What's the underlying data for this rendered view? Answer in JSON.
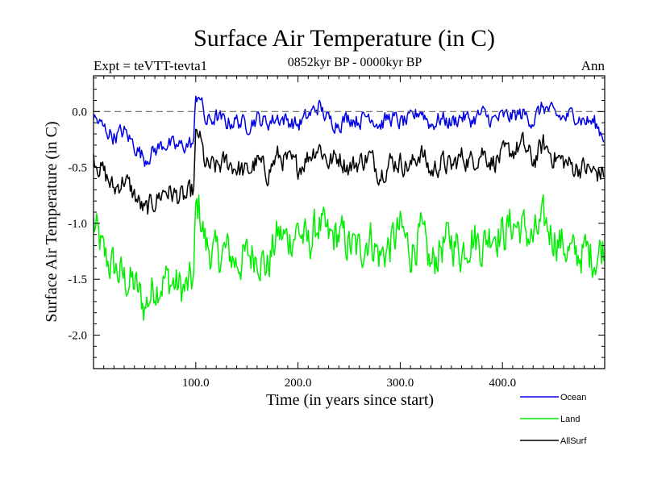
{
  "chart_data": {
    "type": "line",
    "title": "Surface Air Temperature (in C)",
    "subtitle_left": "Expt = teVTT-tevta1",
    "subtitle_center": "0852kyr BP - 0000kyr BP",
    "subtitle_right": "Ann",
    "xlabel": "Time (in years since start)",
    "ylabel": "Surface Air Temperature (in C)",
    "xlim": [
      0,
      500
    ],
    "ylim": [
      -2.3,
      0.32
    ],
    "x_ticks": [
      100,
      200,
      300,
      400
    ],
    "x_tick_labels": [
      "100.0",
      "200.0",
      "300.0",
      "400.0"
    ],
    "y_ticks": [
      0,
      -0.5,
      -1.0,
      -1.5,
      -2.0
    ],
    "y_tick_labels": [
      "0.0",
      "-0.5",
      "-1.0",
      "-1.5",
      "-2.0"
    ],
    "reference_line": 0,
    "legend_position": "bottom-right",
    "series": [
      {
        "name": "Ocean",
        "color": "#0000e6",
        "x": [
          0,
          10,
          20,
          30,
          40,
          50,
          60,
          70,
          80,
          90,
          98,
          100,
          103,
          110,
          120,
          130,
          140,
          150,
          160,
          170,
          180,
          190,
          200,
          210,
          220,
          230,
          240,
          250,
          260,
          270,
          280,
          290,
          300,
          310,
          320,
          330,
          340,
          350,
          360,
          370,
          380,
          390,
          400,
          410,
          420,
          430,
          440,
          450,
          460,
          470,
          480,
          490,
          499
        ],
        "values": [
          -0.05,
          -0.15,
          -0.22,
          -0.18,
          -0.3,
          -0.42,
          -0.35,
          -0.28,
          -0.32,
          -0.3,
          -0.28,
          0.1,
          0.18,
          -0.1,
          -0.05,
          -0.1,
          -0.08,
          -0.12,
          -0.06,
          -0.1,
          -0.05,
          -0.08,
          -0.12,
          -0.04,
          0.05,
          -0.08,
          -0.1,
          -0.05,
          -0.08,
          -0.02,
          -0.12,
          -0.05,
          -0.1,
          -0.08,
          0.02,
          -0.12,
          -0.06,
          -0.1,
          -0.04,
          -0.08,
          -0.02,
          -0.08,
          -0.05,
          -0.04,
          -0.02,
          -0.08,
          0.05,
          -0.03,
          -0.06,
          -0.02,
          -0.08,
          -0.1,
          -0.22
        ]
      },
      {
        "name": "Land",
        "color": "#00ee00",
        "x": [
          0,
          10,
          20,
          30,
          40,
          50,
          60,
          70,
          80,
          90,
          98,
          100,
          103,
          110,
          120,
          130,
          140,
          150,
          160,
          170,
          180,
          190,
          200,
          210,
          220,
          230,
          240,
          250,
          260,
          270,
          280,
          290,
          300,
          310,
          320,
          330,
          340,
          350,
          360,
          370,
          380,
          390,
          400,
          410,
          420,
          430,
          440,
          450,
          460,
          470,
          480,
          490,
          499
        ],
        "values": [
          -1.0,
          -1.3,
          -1.4,
          -1.5,
          -1.55,
          -1.75,
          -1.55,
          -1.5,
          -1.55,
          -1.6,
          -1.5,
          -0.9,
          -0.85,
          -1.2,
          -1.3,
          -1.25,
          -1.35,
          -1.3,
          -1.25,
          -1.4,
          -1.1,
          -1.15,
          -1.05,
          -1.2,
          -1.0,
          -1.15,
          -1.1,
          -1.2,
          -1.25,
          -1.1,
          -1.3,
          -1.2,
          -1.05,
          -1.25,
          -1.1,
          -1.4,
          -1.2,
          -1.15,
          -1.25,
          -1.1,
          -1.2,
          -1.05,
          -1.1,
          -1.0,
          -1.05,
          -1.15,
          -1.0,
          -1.1,
          -1.2,
          -1.3,
          -1.25,
          -1.3,
          -1.2
        ]
      },
      {
        "name": "AllSurf",
        "color": "#000000",
        "x": [
          0,
          10,
          20,
          30,
          40,
          50,
          60,
          70,
          80,
          90,
          98,
          100,
          103,
          110,
          120,
          130,
          140,
          150,
          160,
          170,
          180,
          190,
          200,
          210,
          220,
          230,
          240,
          250,
          260,
          270,
          280,
          290,
          300,
          310,
          320,
          330,
          340,
          350,
          360,
          370,
          380,
          390,
          400,
          410,
          420,
          430,
          440,
          450,
          460,
          470,
          480,
          490,
          499
        ],
        "values": [
          -0.4,
          -0.55,
          -0.7,
          -0.6,
          -0.75,
          -0.9,
          -0.8,
          -0.7,
          -0.75,
          -0.78,
          -0.7,
          -0.25,
          -0.2,
          -0.5,
          -0.5,
          -0.45,
          -0.5,
          -0.55,
          -0.45,
          -0.55,
          -0.4,
          -0.45,
          -0.5,
          -0.4,
          -0.3,
          -0.45,
          -0.4,
          -0.5,
          -0.45,
          -0.4,
          -0.55,
          -0.45,
          -0.45,
          -0.5,
          -0.35,
          -0.55,
          -0.45,
          -0.5,
          -0.4,
          -0.45,
          -0.35,
          -0.45,
          -0.4,
          -0.35,
          -0.3,
          -0.45,
          -0.3,
          -0.4,
          -0.45,
          -0.5,
          -0.5,
          -0.55,
          -0.55
        ]
      }
    ]
  }
}
